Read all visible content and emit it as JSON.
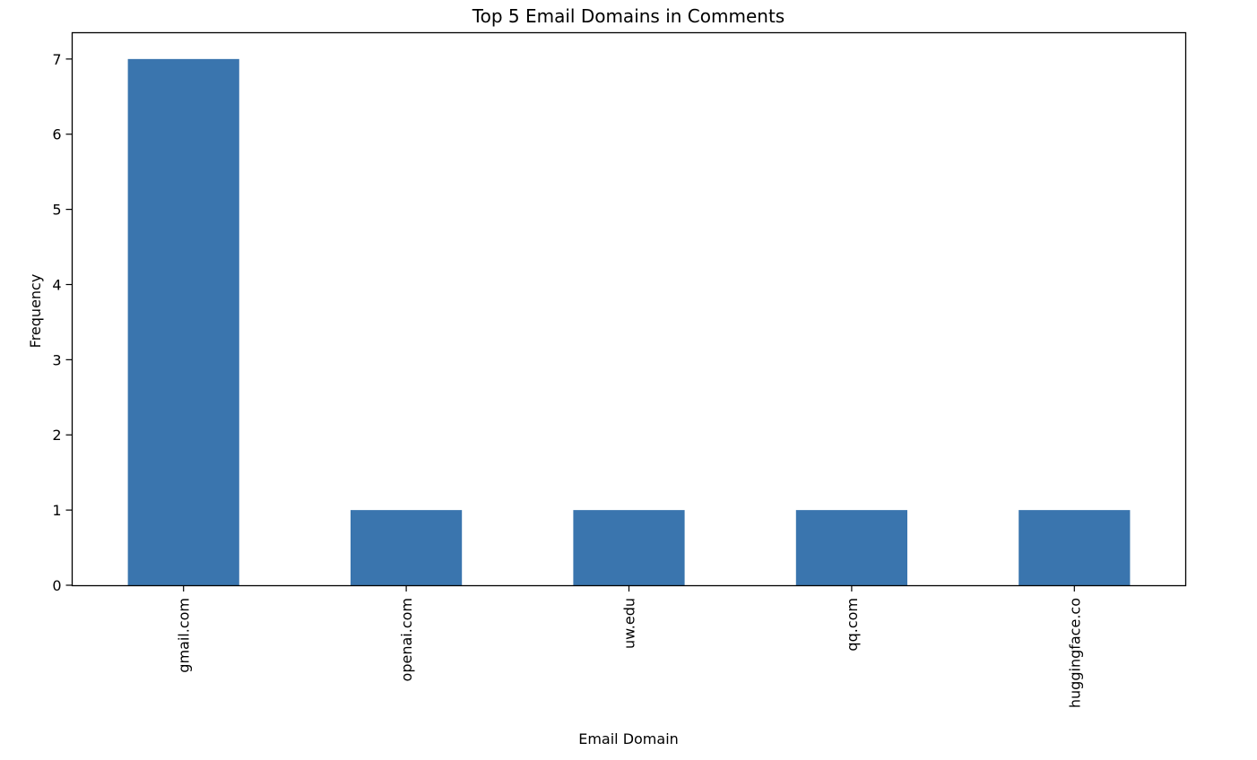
{
  "chart_data": {
    "type": "bar",
    "title": "Top 5 Email Domains in Comments",
    "xlabel": "Email Domain",
    "ylabel": "Frequency",
    "categories": [
      "gmail.com",
      "openai.com",
      "uw.edu",
      "qq.com",
      "huggingface.co"
    ],
    "values": [
      7,
      1,
      1,
      1,
      1
    ],
    "ylim": [
      0,
      7.35
    ],
    "yticks": [
      0,
      1,
      2,
      3,
      4,
      5,
      6,
      7
    ],
    "grid": false,
    "legend": false,
    "bar_color": "#3a75ae",
    "xtick_rotation": "vertical"
  }
}
